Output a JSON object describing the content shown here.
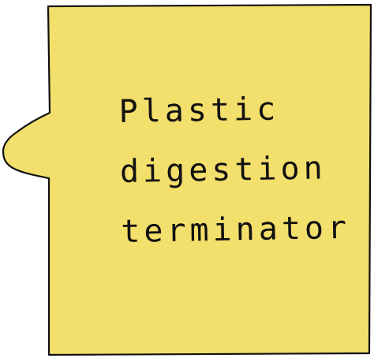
{
  "note": {
    "fill_color": "#f3df6b",
    "stroke_color": "#111111",
    "lines": [
      "Plastic",
      "digestion",
      "terminator"
    ]
  }
}
